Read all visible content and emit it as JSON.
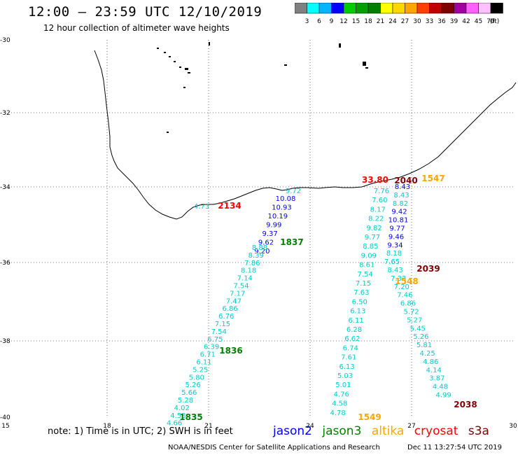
{
  "header": {
    "title": "12:00 – 23:59 UTC 12/10/2019",
    "subtitle": "12 hour collection of altimeter wave heights"
  },
  "colorbar": {
    "labels": [
      "3",
      "6",
      "9",
      "12",
      "15",
      "18",
      "21",
      "24",
      "27",
      "30",
      "33",
      "36",
      "39",
      "42",
      "45",
      "70"
    ],
    "unit": "(ft)",
    "colors": [
      "#808080",
      "#00ffff",
      "#00b4ff",
      "#0000ff",
      "#00cc00",
      "#00a000",
      "#008000",
      "#ffff00",
      "#ffd700",
      "#ffa500",
      "#ff4000",
      "#c00000",
      "#800000",
      "#a000a0",
      "#ff60ff",
      "#ffc0ff",
      "#000000"
    ]
  },
  "axes": {
    "lon_labels": [
      "15",
      "18",
      "21",
      "24",
      "27",
      "30"
    ],
    "lat_labels": [
      "-30",
      "-32",
      "-34",
      "-36",
      "-38",
      "-40"
    ]
  },
  "colors": {
    "jason2": "#0000ff",
    "jason3": "#008000",
    "altika": "#ffa500",
    "cryosat": "#ff0000",
    "s3a": "#800000",
    "cyan": "#00cccc"
  },
  "track_times": [
    {
      "text": "2134",
      "color": "#ff0000"
    },
    {
      "text": "1837",
      "color": "#008000"
    },
    {
      "text": "1836",
      "color": "#008000"
    },
    {
      "text": "1835",
      "color": "#008000"
    },
    {
      "text": "2040",
      "color": "#800000"
    },
    {
      "text": "1547",
      "color": "#ffa500"
    },
    {
      "text": "2039",
      "color": "#800000"
    },
    {
      "text": "1548",
      "color": "#ffa500"
    },
    {
      "text": "2038",
      "color": "#800000"
    },
    {
      "text": "1549",
      "color": "#ffa500"
    },
    {
      "text": "33.80",
      "color": "#ff0000"
    }
  ],
  "track_a": {
    "blue_values": [
      "10.08",
      "10.93",
      "10.19",
      "9.99",
      "9.37",
      "9.62",
      "9.20"
    ],
    "cyan_values": [
      "8.88",
      "8.39",
      "7.86",
      "8.18",
      "7.14",
      "7.54",
      "7.17",
      "7.47",
      "6.86",
      "6.76",
      "7.15",
      "7.54",
      "6.75",
      "6.39",
      "6.71",
      "6.11",
      "5.25",
      "5.80",
      "5.26",
      "5.66",
      "5.28",
      "4.02",
      "4.58",
      "4.66"
    ],
    "top_value": "9.72",
    "west_value": "4.73"
  },
  "track_b": {
    "values": [
      "7.76",
      "7.60",
      "8.17",
      "8.22",
      "9.82",
      "9.77",
      "8.85",
      "9.09",
      "8.61",
      "7.54",
      "7.15",
      "7.63",
      "6.50",
      "6.13",
      "6.11",
      "6.28",
      "6.62",
      "6.74",
      "7.61",
      "6.13",
      "5.03",
      "5.01",
      "4.76",
      "4.58",
      "4.78"
    ]
  },
  "track_c": {
    "values": [
      "8.43",
      "8.43",
      "8.82",
      "9.42",
      "10.81",
      "9.77",
      "9.46",
      "9.34",
      "8.18",
      "7.65",
      "8.43",
      "7.33",
      "7.20",
      "7.46",
      "6.86",
      "5.72",
      "5.27",
      "5.45",
      "5.26",
      "5.81",
      "4.25",
      "4.86",
      "4.14",
      "3.87",
      "4.48",
      "4.99"
    ]
  },
  "footer": {
    "note": "note: 1) Time is in UTC; 2) SWH is in feet",
    "legend": [
      "jason2",
      "jason3",
      "altika",
      "cryosat",
      "s3a"
    ],
    "credit": "NOAA/NESDIS Center for Satellite Applications and Research",
    "timestamp": "Dec 11 13:27:54 UTC 2019"
  }
}
